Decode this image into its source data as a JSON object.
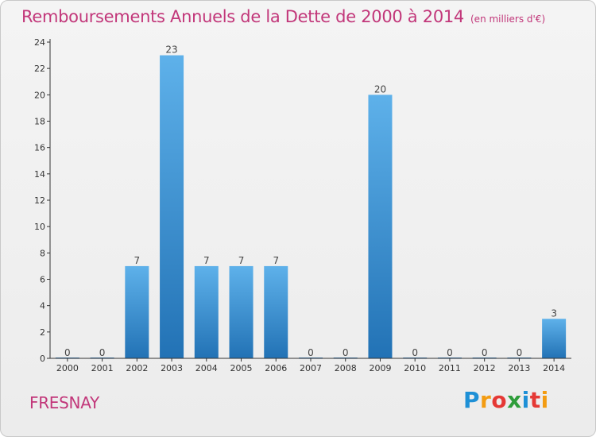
{
  "chart_data": {
    "type": "bar",
    "title": "Remboursements Annuels de la Dette de 2000 à 2014",
    "unit_label": "(en milliers d'€)",
    "categories": [
      "2000",
      "2001",
      "2002",
      "2003",
      "2004",
      "2005",
      "2006",
      "2007",
      "2008",
      "2009",
      "2010",
      "2011",
      "2012",
      "2013",
      "2014"
    ],
    "values": [
      0,
      0,
      7,
      23,
      7,
      7,
      7,
      0,
      0,
      20,
      0,
      0,
      0,
      0,
      3
    ],
    "data_labels": [
      "0",
      "0",
      "7",
      "23",
      "7",
      "7",
      "7",
      "0",
      "0",
      "20",
      "0",
      "0",
      "0",
      "0",
      "3"
    ],
    "y_ticks": [
      0,
      2,
      4,
      6,
      8,
      10,
      12,
      14,
      16,
      18,
      20,
      22,
      24
    ],
    "ylim": [
      0,
      24
    ],
    "xlabel": "",
    "ylabel": "",
    "grid": false,
    "legend": "none",
    "colors": {
      "bar_light": "#5eb1ea",
      "bar_dark": "#2272b5",
      "title": "#c2377a",
      "axis": "#333333"
    }
  },
  "footer": {
    "commune": "FRESNAY",
    "logo": {
      "letters": [
        "P",
        "r",
        "o",
        "x",
        "i",
        "t",
        "i"
      ],
      "colors": [
        "#1e90d6",
        "#f39c12",
        "#e53935",
        "#2e9d3a",
        "#1e90d6",
        "#e53935",
        "#f39c12"
      ]
    }
  }
}
